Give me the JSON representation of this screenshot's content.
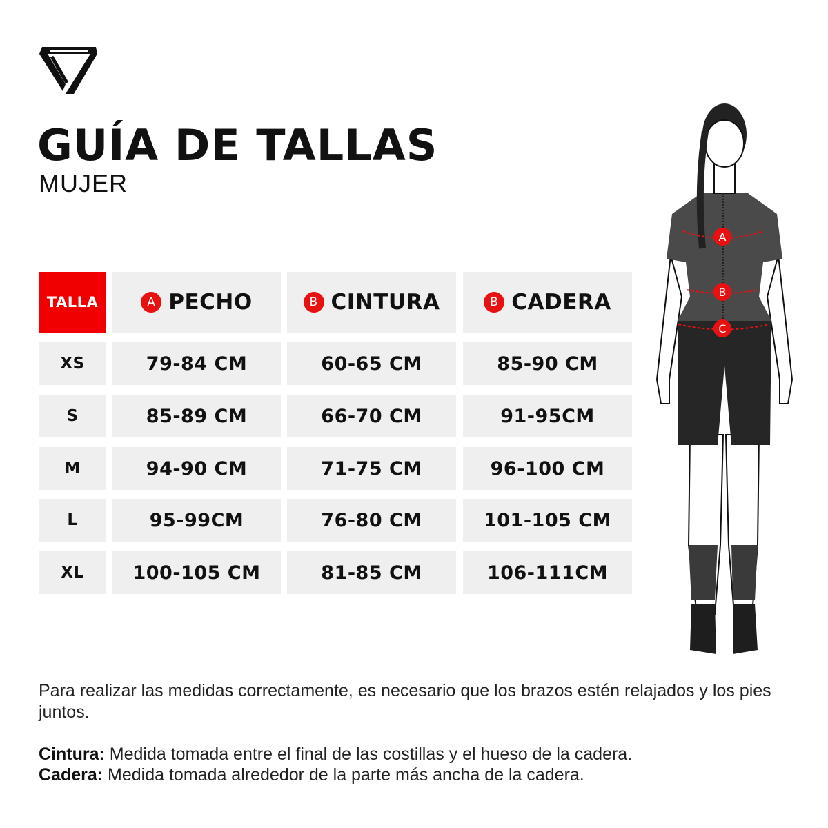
{
  "brand": {
    "logo": "shield-triangle-logo"
  },
  "header": {
    "title": "GUÍA DE TALLAS",
    "subtitle": "MUJER"
  },
  "table": {
    "headers": [
      {
        "label": "TALLA"
      },
      {
        "badge": "A",
        "label": "PECHO"
      },
      {
        "badge": "B",
        "label": "CINTURA"
      },
      {
        "badge": "B",
        "label": "CADERA"
      }
    ],
    "rows": [
      {
        "size": "XS",
        "pecho": "79-84 CM",
        "cintura": "60-65 CM",
        "cadera": "85-90 CM"
      },
      {
        "size": "S",
        "pecho": "85-89 CM",
        "cintura": "66-70 CM",
        "cadera": "91-95CM"
      },
      {
        "size": "M",
        "pecho": "94-90 CM",
        "cintura": "71-75 CM",
        "cadera": "96-100 CM"
      },
      {
        "size": "L",
        "pecho": "95-99CM",
        "cintura": "76-80 CM",
        "cadera": "101-105 CM"
      },
      {
        "size": "XL",
        "pecho": "100-105 CM",
        "cintura": "81-85 CM",
        "cadera": "106-111CM"
      }
    ]
  },
  "figure": {
    "markers": [
      "A",
      "B",
      "C"
    ]
  },
  "notes": {
    "instruction": "Para realizar las medidas correctamente, es necesario que los brazos estén relajados y los pies juntos.",
    "definitions": [
      {
        "term": "Cintura:",
        "text": " Medida tomada entre el final de las costillas y el hueso de la cadera."
      },
      {
        "term": "Cadera:",
        "text": " Medida tomada alrededor de la parte más ancha de la cadera."
      }
    ]
  },
  "colors": {
    "accent": "#f00000",
    "cell_bg": "#efeff0",
    "text": "#111111"
  }
}
